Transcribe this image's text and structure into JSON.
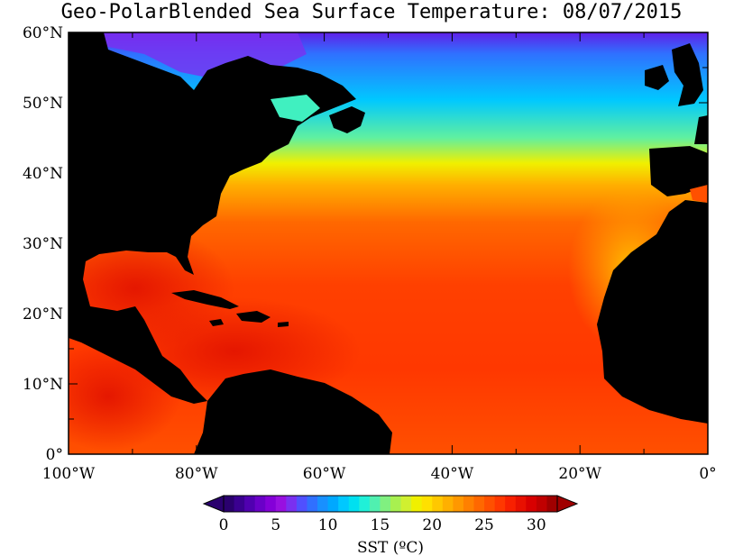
{
  "title": "Geo-PolarBlended Sea Surface Temperature: 08/07/2015",
  "map": {
    "lon_range": [
      -100,
      0
    ],
    "lat_range": [
      0,
      60
    ],
    "x_ticks": [
      {
        "value": -100,
        "label": "100°W"
      },
      {
        "value": -80,
        "label": "80°W"
      },
      {
        "value": -60,
        "label": "60°W"
      },
      {
        "value": -40,
        "label": "40°W"
      },
      {
        "value": -20,
        "label": "20°W"
      },
      {
        "value": 0,
        "label": "0°"
      }
    ],
    "y_ticks": [
      {
        "value": 60,
        "label": "60°N"
      },
      {
        "value": 50,
        "label": "50°N"
      },
      {
        "value": 40,
        "label": "40°N"
      },
      {
        "value": 30,
        "label": "30°N"
      },
      {
        "value": 20,
        "label": "20°N"
      },
      {
        "value": 10,
        "label": "10°N"
      },
      {
        "value": 0,
        "label": "0°"
      }
    ],
    "land_color": "#000000"
  },
  "colorbar": {
    "label": "SST (ºC)",
    "range": [
      0,
      32
    ],
    "ticks": [
      {
        "value": 0,
        "label": "0"
      },
      {
        "value": 5,
        "label": "5"
      },
      {
        "value": 10,
        "label": "10"
      },
      {
        "value": 15,
        "label": "15"
      },
      {
        "value": 20,
        "label": "20"
      },
      {
        "value": 25,
        "label": "25"
      },
      {
        "value": 30,
        "label": "30"
      }
    ],
    "colors": [
      "#2a006e",
      "#3a0090",
      "#5000b0",
      "#6a00c8",
      "#8400d8",
      "#9810e0",
      "#7a30f0",
      "#5050ff",
      "#3070ff",
      "#1890ff",
      "#00a8ff",
      "#00c8ff",
      "#00e0f0",
      "#20f0d8",
      "#50f0b0",
      "#80f080",
      "#a8f050",
      "#d0f030",
      "#f0f000",
      "#ffe000",
      "#ffc800",
      "#ffb000",
      "#ff9800",
      "#ff8000",
      "#ff6800",
      "#ff5000",
      "#ff3800",
      "#f82000",
      "#e81000",
      "#d80000",
      "#c00000",
      "#a00000"
    ]
  }
}
